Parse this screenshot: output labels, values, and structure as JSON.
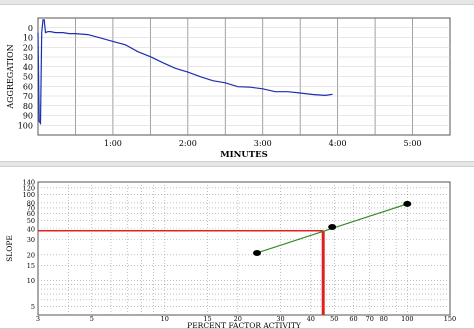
{
  "chart_data": [
    {
      "type": "line",
      "xlabel": "MINUTES",
      "ylabel": "AGGREGATION",
      "xlim": [
        0,
        330
      ],
      "ylim": [
        -10,
        110
      ],
      "y_inverted": true,
      "x_tick_labels": [
        {
          "value": 60,
          "label": "1:00"
        },
        {
          "value": 120,
          "label": "2:00"
        },
        {
          "value": 180,
          "label": "3:00"
        },
        {
          "value": 240,
          "label": "4:00"
        },
        {
          "value": 300,
          "label": "5:00"
        }
      ],
      "y_tick_labels": [
        "0",
        "10",
        "20",
        "30",
        "40",
        "50",
        "60",
        "70",
        "80",
        "90",
        "100"
      ],
      "grid": true,
      "line_color": "#1a2fb0",
      "series": [
        {
          "x": [
            0,
            1,
            2,
            3,
            4,
            5,
            6,
            8,
            10,
            14,
            20,
            25,
            30,
            40,
            50,
            60,
            70,
            80,
            90,
            100,
            110,
            120,
            130,
            140,
            150,
            160,
            170,
            180,
            190,
            200,
            210,
            220,
            230,
            236
          ],
          "y": [
            5,
            96,
            98,
            5,
            -8,
            -8,
            5,
            4,
            4,
            5,
            5,
            6,
            6,
            7,
            10,
            14,
            18,
            24,
            30,
            36,
            41,
            46,
            50,
            54,
            57,
            60,
            61,
            63,
            65,
            66,
            67,
            68,
            70,
            68
          ]
        }
      ]
    },
    {
      "type": "scatter",
      "xlabel": "PERCENT FACTOR ACTIVITY",
      "ylabel": "SLOPE",
      "x_scale": "log",
      "y_scale": "log",
      "xlim": [
        3,
        150
      ],
      "ylim": [
        4,
        140
      ],
      "grid": true,
      "x_tick_labels": [
        3,
        5,
        10,
        15,
        20,
        30,
        40,
        50,
        60,
        70,
        80,
        100,
        150
      ],
      "y_tick_labels": [
        5,
        10,
        15,
        20,
        30,
        40,
        50,
        60,
        70,
        80,
        100,
        120,
        140
      ],
      "points": [
        {
          "x": 24,
          "y": 21
        },
        {
          "x": 49,
          "y": 42
        },
        {
          "x": 100,
          "y": 78
        }
      ],
      "fit_line": {
        "x": [
          24,
          100
        ],
        "y": [
          21,
          78
        ],
        "color": "#3a8a2a"
      },
      "reference": {
        "x": 45,
        "y": 38,
        "color": "#e02020"
      }
    }
  ]
}
